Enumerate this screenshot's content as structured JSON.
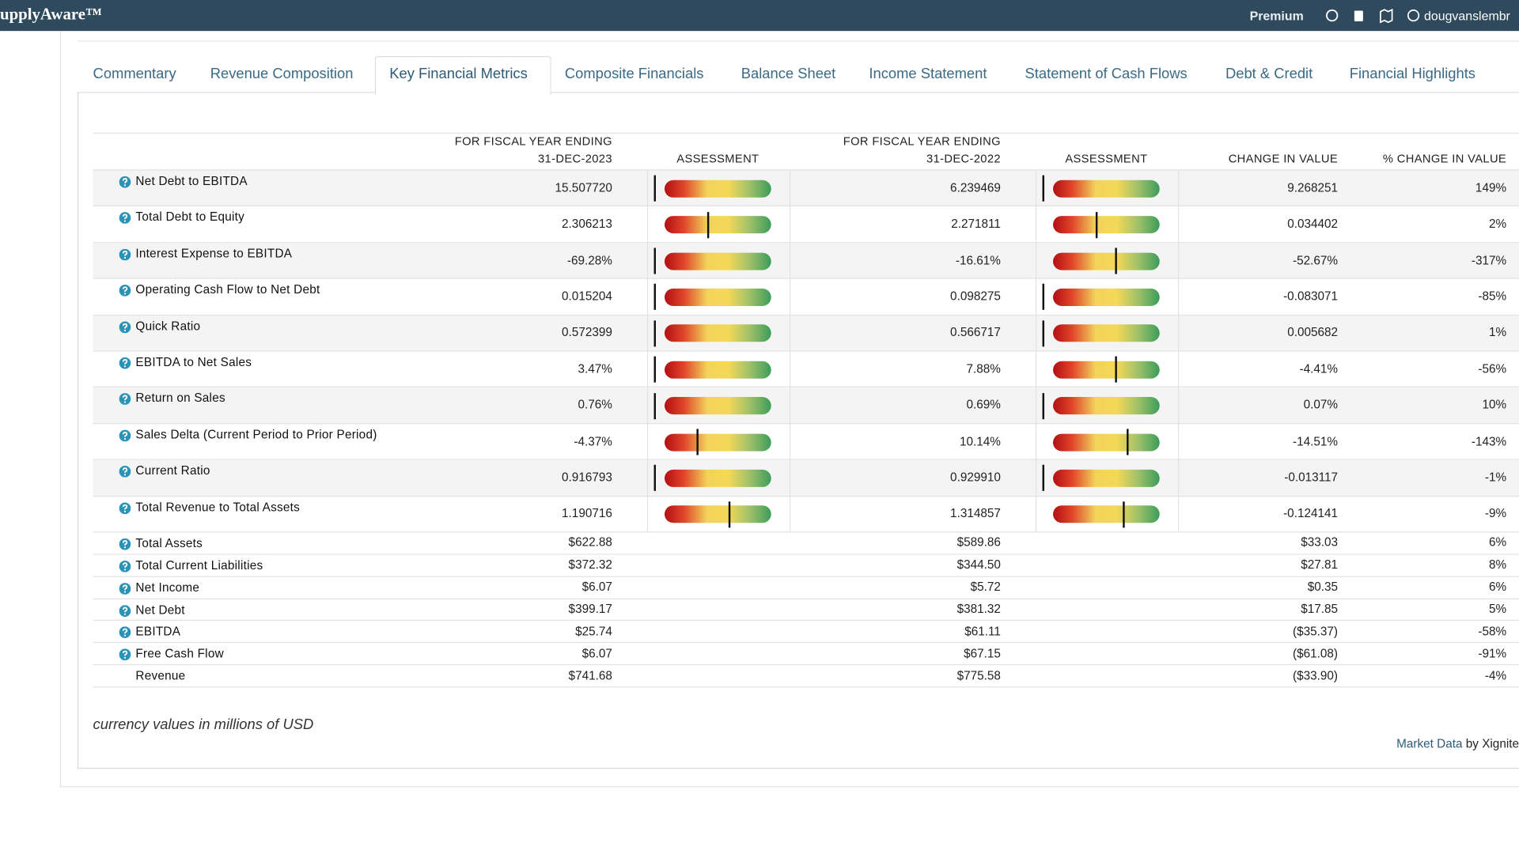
{
  "header": {
    "logo": "upplyAware™",
    "premium": "Premium",
    "user": "dougvanslembr"
  },
  "tabs": [
    "Commentary",
    "Revenue Composition",
    "Key Financial Metrics",
    "Composite Financials",
    "Balance Sheet",
    "Income Statement",
    "Statement of Cash Flows",
    "Debt & Credit",
    "Financial Highlights"
  ],
  "active_tab": 2,
  "table": {
    "columns": [
      [
        "FOR FISCAL YEAR ENDING",
        "31-DEC-2023"
      ],
      [
        "ASSESSMENT"
      ],
      [
        "FOR FISCAL YEAR ENDING",
        "31-DEC-2022"
      ],
      [
        "ASSESSMENT"
      ],
      [
        "CHANGE IN VALUE"
      ],
      [
        "% CHANGE IN VALUE"
      ]
    ],
    "rows": [
      {
        "label": "Net Debt to EBITDA",
        "help": true,
        "values": [
          "15.507720",
          "6.239469",
          "9.268251",
          "149%"
        ],
        "assessment": [
          0,
          0
        ]
      },
      {
        "label": "Total Debt to Equity",
        "help": true,
        "values": [
          "2.306213",
          "2.271811",
          "0.034402",
          "2%"
        ],
        "assessment": [
          42,
          42
        ]
      },
      {
        "label": "Interest Expense to EBITDA",
        "help": true,
        "values": [
          "-69.28%",
          "-16.61%",
          "-52.67%",
          "-317%"
        ],
        "assessment": [
          0,
          58
        ]
      },
      {
        "label": "Operating Cash Flow to Net Debt",
        "help": true,
        "values": [
          "0.015204",
          "0.098275",
          "-0.083071",
          "-85%"
        ],
        "assessment": [
          0,
          0
        ]
      },
      {
        "label": "Quick Ratio",
        "help": true,
        "values": [
          "0.572399",
          "0.566717",
          "0.005682",
          "1%"
        ],
        "assessment": [
          0,
          0
        ]
      },
      {
        "label": "EBITDA to Net Sales",
        "help": true,
        "values": [
          "3.47%",
          "7.88%",
          "-4.41%",
          "-56%"
        ],
        "assessment": [
          0,
          58
        ]
      },
      {
        "label": "Return on Sales",
        "help": true,
        "values": [
          "0.76%",
          "0.69%",
          "0.07%",
          "10%"
        ],
        "assessment": [
          0,
          0
        ]
      },
      {
        "label": "Sales Delta (Current Period to Prior Period)",
        "help": true,
        "values": [
          "-4.37%",
          "10.14%",
          "-14.51%",
          "-143%"
        ],
        "assessment": [
          34,
          67
        ]
      },
      {
        "label": "Current Ratio",
        "help": true,
        "values": [
          "0.916793",
          "0.929910",
          "-0.013117",
          "-1%"
        ],
        "assessment": [
          0,
          0
        ]
      },
      {
        "label": "Total Revenue to Total Assets",
        "help": true,
        "values": [
          "1.190716",
          "1.314857",
          "-0.124141",
          "-9%"
        ],
        "assessment": [
          59,
          64
        ]
      },
      {
        "label": "Total Assets",
        "help": true,
        "values": [
          "$622.88",
          "$589.86",
          "$33.03",
          "6%"
        ]
      },
      {
        "label": "Total Current Liabilities",
        "help": true,
        "values": [
          "$372.32",
          "$344.50",
          "$27.81",
          "8%"
        ]
      },
      {
        "label": "Net Income",
        "help": true,
        "values": [
          "$6.07",
          "$5.72",
          "$0.35",
          "6%"
        ]
      },
      {
        "label": "Net Debt",
        "help": true,
        "values": [
          "$399.17",
          "$381.32",
          "$17.85",
          "5%"
        ]
      },
      {
        "label": "EBITDA",
        "help": true,
        "values": [
          "$25.74",
          "$61.11",
          "($35.37)",
          "-58%"
        ]
      },
      {
        "label": "Free Cash Flow",
        "help": true,
        "values": [
          "$6.07",
          "$67.15",
          "($61.08)",
          "-91%"
        ]
      },
      {
        "label": "Revenue",
        "help": false,
        "values": [
          "$741.68",
          "$775.58",
          "($33.90)",
          "-4%"
        ]
      }
    ]
  },
  "footnote": "currency values in millions of USD",
  "attribution": {
    "link": "Market Data",
    "text": "by Xignite"
  }
}
